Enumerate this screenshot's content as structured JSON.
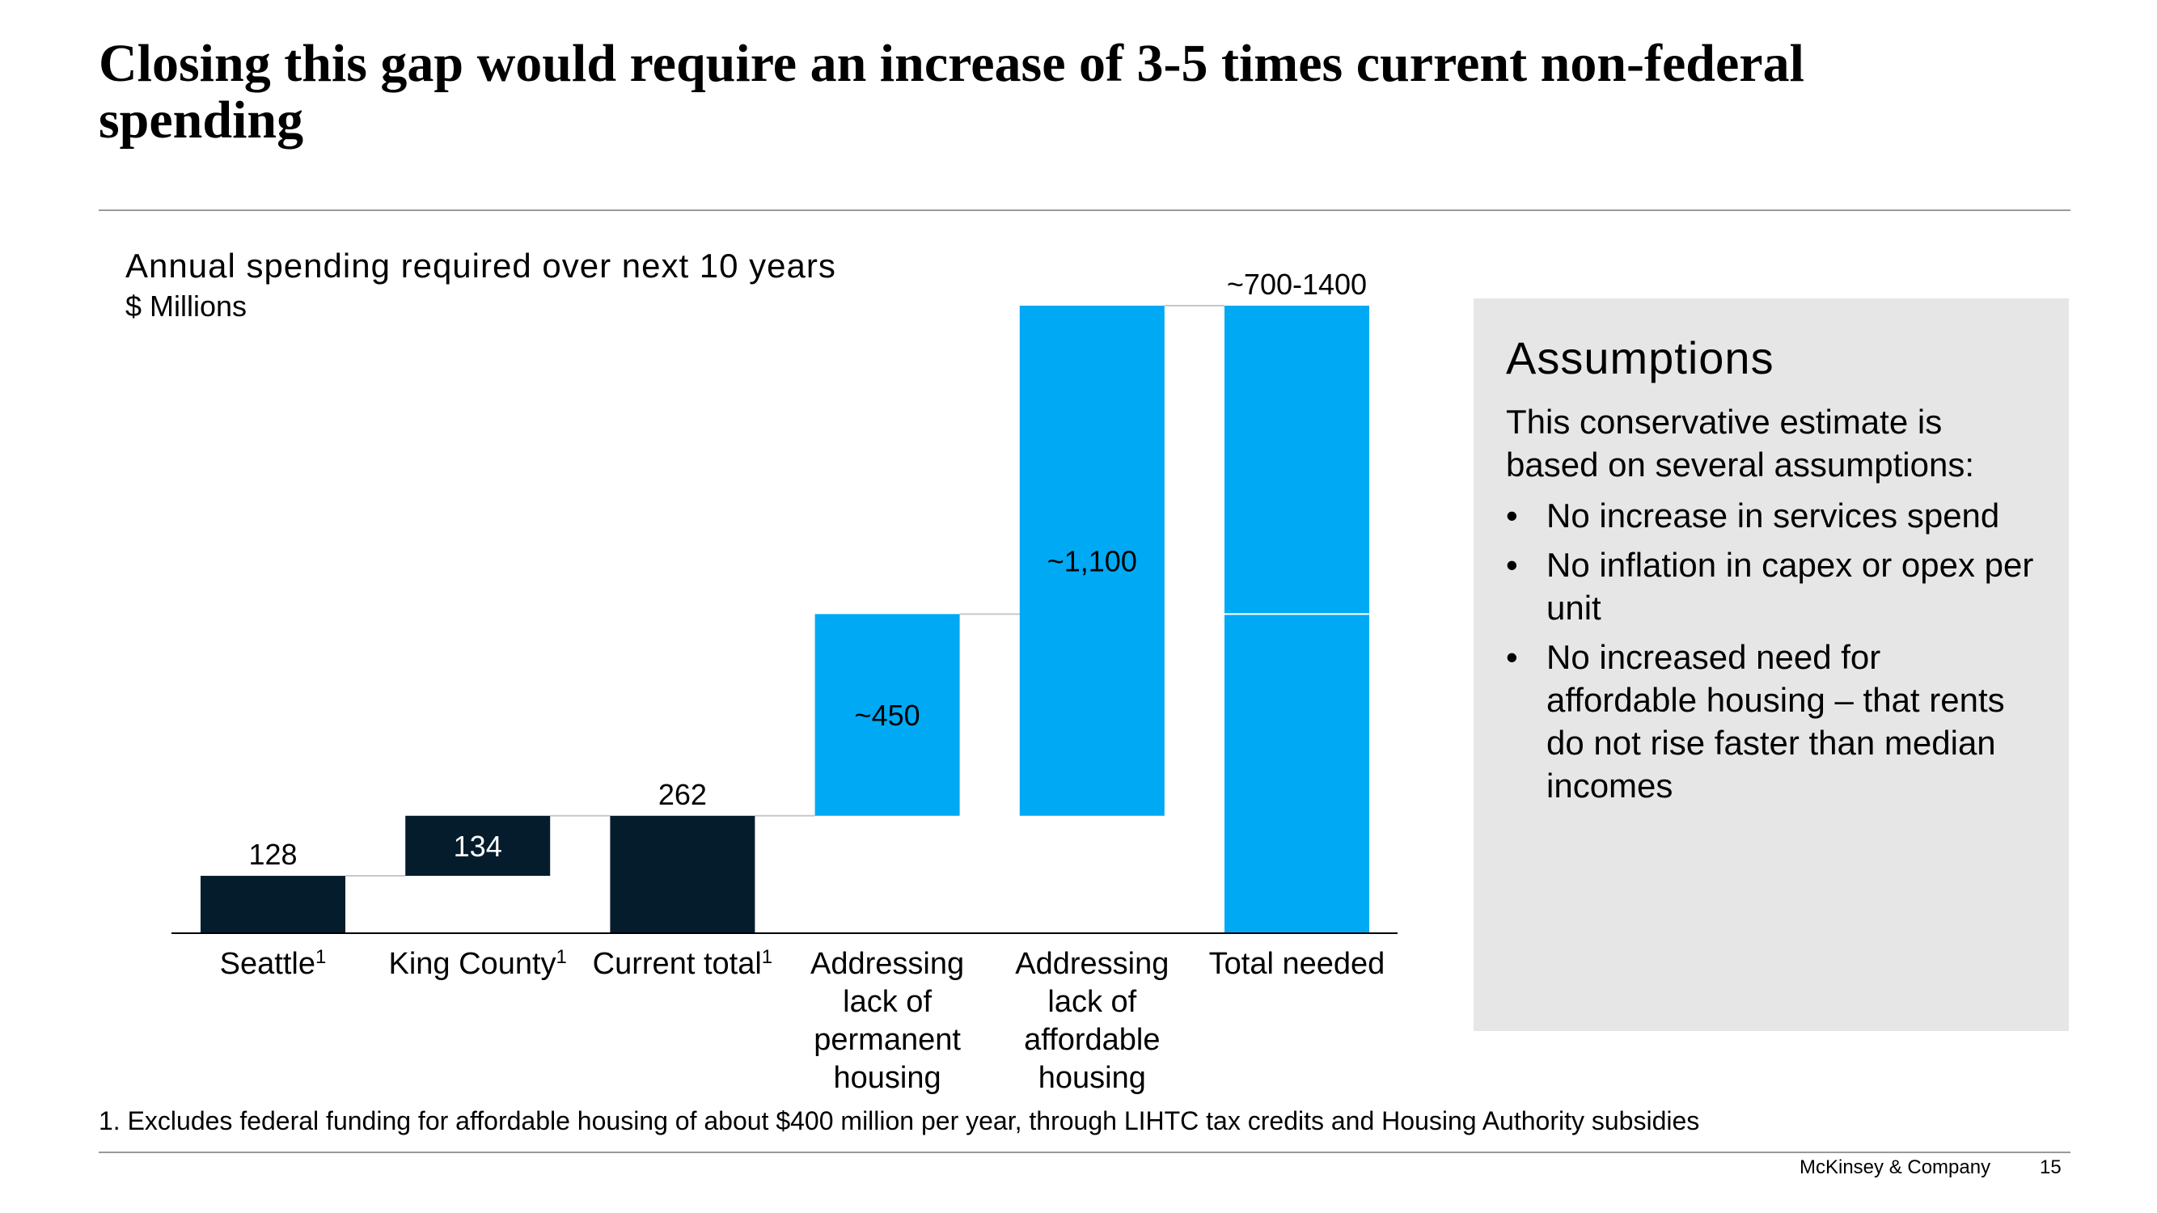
{
  "slide": {
    "title": "Closing this gap would require an increase of 3-5 times current non-federal spending",
    "footnote": "1.  Excludes federal funding for affordable housing of about $400 million per year, through LIHTC tax credits and Housing Authority subsidies",
    "brand": "McKinsey & Company",
    "page_number": "15"
  },
  "assumptions": {
    "heading": "Assumptions",
    "intro": "This conservative estimate is based on several assumptions:",
    "bullets": [
      "No increase in services spend",
      "No inflation in capex or opex per unit",
      "No increased need for affordable housing – that rents do not rise faster than median incomes"
    ]
  },
  "chart_data": {
    "type": "bar",
    "variant": "waterfall",
    "title": "Annual spending required over next 10 years",
    "unit": "$ Millions",
    "ylim": [
      0,
      1400
    ],
    "grid": false,
    "categories": [
      {
        "lines": [
          "Seattle"
        ],
        "sup": "1"
      },
      {
        "lines": [
          "King County"
        ],
        "sup": "1"
      },
      {
        "lines": [
          "Current total"
        ],
        "sup": "1"
      },
      {
        "lines": [
          "Addressing",
          "lack of",
          "permanent",
          "housing"
        ],
        "sup": ""
      },
      {
        "lines": [
          "Addressing",
          "lack of",
          "affordable",
          "housing"
        ],
        "sup": ""
      },
      {
        "lines": [
          "Total needed"
        ],
        "sup": ""
      }
    ],
    "bars": [
      {
        "start": 0,
        "end": 128,
        "label": "128",
        "label_position": "above",
        "color": "#051c2c"
      },
      {
        "start": 128,
        "end": 262,
        "label": "134",
        "label_position": "inside",
        "color": "#051c2c"
      },
      {
        "start": 0,
        "end": 262,
        "label": "262",
        "label_position": "above",
        "color": "#051c2c"
      },
      {
        "start": 262,
        "end": 712,
        "label": "~450",
        "label_position": "inside",
        "color": "#00a9f4"
      },
      {
        "start": 262,
        "end": 1400,
        "label": "~1,100",
        "label_position": "inside",
        "color": "#00a9f4"
      },
      {
        "start": 0,
        "end": 1400,
        "label": "~700-1400",
        "label_position": "above",
        "color": "#00a9f4",
        "divider": 712
      }
    ],
    "colors": {
      "dark": "#051c2c",
      "accent": "#00a9f4",
      "connector": "#c8c8c8",
      "axis": "#000000"
    }
  }
}
